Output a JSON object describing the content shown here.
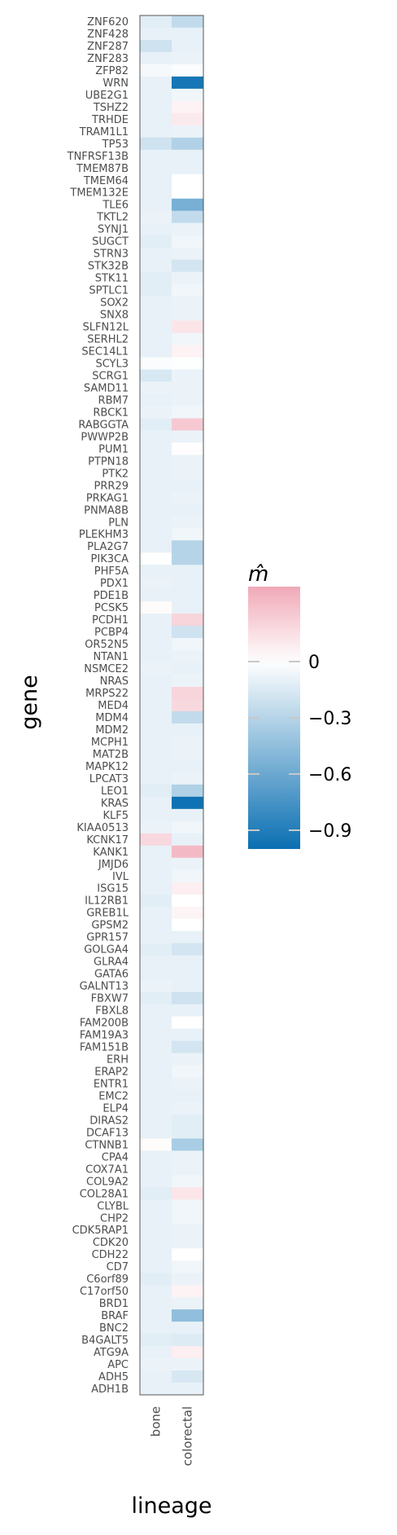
{
  "chart_data": {
    "type": "heatmap",
    "xlabel": "lineage",
    "ylabel": "gene",
    "columns": [
      "bone",
      "colorectal"
    ],
    "rows": [
      "ZNF620",
      "ZNF428",
      "ZNF287",
      "ZNF283",
      "ZFP82",
      "WRN",
      "UBE2G1",
      "TSHZ2",
      "TRHDE",
      "TRAM1L1",
      "TP53",
      "TNFRSF13B",
      "TMEM87B",
      "TMEM64",
      "TMEM132E",
      "TLE6",
      "TKTL2",
      "SYNJ1",
      "SUGCT",
      "STRN3",
      "STK32B",
      "STK11",
      "SPTLC1",
      "SOX2",
      "SNX8",
      "SLFN12L",
      "SERHL2",
      "SEC14L1",
      "SCYL3",
      "SCRG1",
      "SAMD11",
      "RBM7",
      "RBCK1",
      "RABGGTA",
      "PWWP2B",
      "PUM1",
      "PTPN18",
      "PTK2",
      "PRR29",
      "PRKAG1",
      "PNMA8B",
      "PLN",
      "PLEKHM3",
      "PLA2G7",
      "PIK3CA",
      "PHF5A",
      "PDX1",
      "PDE1B",
      "PCSK5",
      "PCDH1",
      "PCBP4",
      "OR52N5",
      "NTAN1",
      "NSMCE2",
      "NRAS",
      "MRPS22",
      "MED4",
      "MDM4",
      "MDM2",
      "MCPH1",
      "MAT2B",
      "MAPK12",
      "LPCAT3",
      "LEO1",
      "KRAS",
      "KLF5",
      "KIAA0513",
      "KCNK17",
      "KANK1",
      "JMJD6",
      "IVL",
      "ISG15",
      "IL12RB1",
      "GREB1L",
      "GPSM2",
      "GPR157",
      "GOLGA4",
      "GLRA4",
      "GATA6",
      "GALNT13",
      "FBXW7",
      "FBXL8",
      "FAM200B",
      "FAM19A3",
      "FAM151B",
      "ERH",
      "ERAP2",
      "ENTR1",
      "EMC2",
      "ELP4",
      "DIRAS2",
      "DCAF13",
      "CTNNB1",
      "CPA4",
      "COX7A1",
      "COL9A2",
      "COL28A1",
      "CLYBL",
      "CHP2",
      "CDK5RAP1",
      "CDK20",
      "CDH22",
      "CD7",
      "C6orf89",
      "C17orf50",
      "BRD1",
      "BRAF",
      "BNC2",
      "B4GALT5",
      "ATG9A",
      "APC",
      "ADH5",
      "ADH1B"
    ],
    "values": [
      [
        -0.12,
        -0.25
      ],
      [
        -0.1,
        -0.1
      ],
      [
        -0.2,
        -0.1
      ],
      [
        -0.1,
        -0.08
      ],
      [
        -0.04,
        -0.02
      ],
      [
        -0.1,
        -0.95
      ],
      [
        -0.1,
        -0.06
      ],
      [
        -0.1,
        0.06
      ],
      [
        -0.1,
        0.1
      ],
      [
        -0.1,
        -0.08
      ],
      [
        -0.2,
        -0.32
      ],
      [
        -0.1,
        -0.1
      ],
      [
        -0.1,
        -0.1
      ],
      [
        -0.1,
        0.0
      ],
      [
        -0.1,
        0.0
      ],
      [
        -0.1,
        -0.55
      ],
      [
        -0.08,
        -0.25
      ],
      [
        -0.1,
        -0.08
      ],
      [
        -0.12,
        -0.06
      ],
      [
        -0.1,
        -0.08
      ],
      [
        -0.1,
        -0.18
      ],
      [
        -0.12,
        -0.08
      ],
      [
        -0.12,
        -0.06
      ],
      [
        -0.1,
        -0.08
      ],
      [
        -0.1,
        -0.08
      ],
      [
        -0.1,
        0.12
      ],
      [
        -0.1,
        -0.06
      ],
      [
        -0.1,
        0.06
      ],
      [
        -0.02,
        -0.01
      ],
      [
        -0.16,
        -0.08
      ],
      [
        -0.08,
        -0.08
      ],
      [
        -0.1,
        -0.08
      ],
      [
        -0.08,
        -0.06
      ],
      [
        -0.12,
        0.25
      ],
      [
        -0.1,
        -0.08
      ],
      [
        -0.1,
        0.01
      ],
      [
        -0.1,
        -0.08
      ],
      [
        -0.1,
        -0.08
      ],
      [
        -0.1,
        -0.1
      ],
      [
        -0.1,
        -0.08
      ],
      [
        -0.1,
        -0.1
      ],
      [
        -0.1,
        -0.08
      ],
      [
        -0.1,
        -0.06
      ],
      [
        -0.1,
        -0.3
      ],
      [
        -0.01,
        -0.3
      ],
      [
        -0.1,
        -0.1
      ],
      [
        -0.08,
        -0.1
      ],
      [
        -0.1,
        -0.1
      ],
      [
        0.02,
        -0.1
      ],
      [
        -0.1,
        0.2
      ],
      [
        -0.1,
        -0.2
      ],
      [
        -0.1,
        -0.06
      ],
      [
        -0.1,
        -0.08
      ],
      [
        -0.08,
        -0.1
      ],
      [
        -0.1,
        -0.08
      ],
      [
        -0.1,
        0.2
      ],
      [
        -0.1,
        0.18
      ],
      [
        -0.1,
        -0.25
      ],
      [
        -0.1,
        -0.1
      ],
      [
        -0.1,
        -0.08
      ],
      [
        -0.1,
        -0.08
      ],
      [
        -0.1,
        -0.1
      ],
      [
        -0.1,
        -0.08
      ],
      [
        -0.12,
        -0.32
      ],
      [
        -0.1,
        -0.98
      ],
      [
        -0.1,
        -0.1
      ],
      [
        -0.08,
        -0.06
      ],
      [
        0.18,
        -0.1
      ],
      [
        -0.1,
        0.32
      ],
      [
        -0.1,
        -0.08
      ],
      [
        -0.1,
        -0.06
      ],
      [
        -0.1,
        0.08
      ],
      [
        -0.12,
        0.0
      ],
      [
        -0.1,
        0.05
      ],
      [
        -0.1,
        0.0
      ],
      [
        -0.1,
        -0.1
      ],
      [
        -0.12,
        -0.18
      ],
      [
        -0.1,
        -0.1
      ],
      [
        -0.1,
        -0.1
      ],
      [
        -0.08,
        -0.1
      ],
      [
        -0.12,
        -0.2
      ],
      [
        -0.1,
        -0.1
      ],
      [
        -0.1,
        0.0
      ],
      [
        -0.1,
        -0.1
      ],
      [
        -0.1,
        -0.18
      ],
      [
        -0.1,
        -0.08
      ],
      [
        -0.1,
        -0.06
      ],
      [
        -0.1,
        -0.08
      ],
      [
        -0.1,
        -0.1
      ],
      [
        -0.1,
        -0.08
      ],
      [
        -0.1,
        -0.12
      ],
      [
        -0.1,
        -0.12
      ],
      [
        0.02,
        -0.35
      ],
      [
        -0.1,
        -0.08
      ],
      [
        -0.1,
        -0.08
      ],
      [
        -0.1,
        -0.06
      ],
      [
        -0.12,
        0.12
      ],
      [
        -0.1,
        -0.06
      ],
      [
        -0.1,
        -0.06
      ],
      [
        -0.1,
        -0.08
      ],
      [
        -0.1,
        -0.08
      ],
      [
        -0.1,
        0.0
      ],
      [
        -0.1,
        -0.06
      ],
      [
        -0.12,
        -0.08
      ],
      [
        -0.1,
        0.06
      ],
      [
        -0.1,
        -0.08
      ],
      [
        -0.1,
        -0.45
      ],
      [
        -0.1,
        -0.1
      ],
      [
        -0.12,
        -0.14
      ],
      [
        -0.1,
        0.08
      ],
      [
        -0.08,
        -0.08
      ],
      [
        -0.1,
        -0.16
      ],
      [
        -0.1,
        -0.1
      ]
    ],
    "colorbar": {
      "title": "m̂",
      "ticks": [
        0,
        -0.3,
        -0.6,
        -0.9
      ],
      "tick_labels": [
        "0",
        "−0.3",
        "−0.6",
        "−0.9"
      ],
      "range": [
        -1.0,
        0.4
      ],
      "low_color": "#0a6fb2",
      "mid_color": "#ffffff",
      "high_color": "#f0a9b7"
    }
  }
}
